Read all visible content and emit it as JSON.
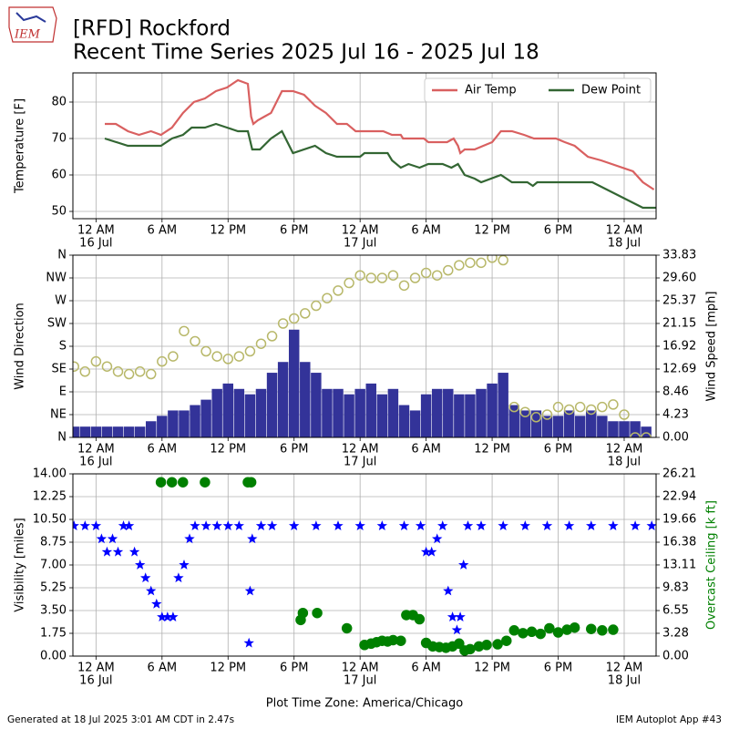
{
  "header": {
    "logo": "IEM",
    "title": "[RFD] Rockford",
    "subtitle": "Recent Time Series 2025 Jul 16 - 2025 Jul 18"
  },
  "footer": {
    "left": "Generated at 18 Jul 2025 3:01 AM CDT in 2.47s",
    "right": "IEM Autoplot App #43"
  },
  "chart_data": [
    {
      "type": "line",
      "ylabel": "Temperature [F]",
      "grid": true,
      "legend": "upper right",
      "xlim": [
        -2.1,
        50.9
      ],
      "xticks": [
        {
          "value": 0,
          "label": [
            "12 AM",
            "16 Jul"
          ]
        },
        {
          "value": 6,
          "label": [
            "6 AM"
          ]
        },
        {
          "value": 12,
          "label": [
            "12 PM"
          ]
        },
        {
          "value": 18,
          "label": [
            "6 PM"
          ]
        },
        {
          "value": 24,
          "label": [
            "12 AM",
            "17 Jul"
          ]
        },
        {
          "value": 30,
          "label": [
            "6 AM"
          ]
        },
        {
          "value": 36,
          "label": [
            "12 PM"
          ]
        },
        {
          "value": 42,
          "label": [
            "6 PM"
          ]
        },
        {
          "value": 48,
          "label": [
            "12 AM",
            "18 Jul"
          ]
        }
      ],
      "ylim": [
        48,
        88
      ],
      "yticks": [
        50,
        60,
        70,
        80
      ],
      "series": [
        {
          "name": "Air Temp",
          "type": "line",
          "color": "#d96060",
          "x": [
            0.8,
            1.8,
            2.9,
            3.9,
            5.0,
            5.9,
            6.9,
            7.9,
            8.9,
            9.9,
            10.9,
            11.9,
            12.9,
            13.8,
            14.1,
            14.3,
            14.7,
            15.3,
            15.9,
            16.9,
            17.9,
            18.9,
            19.9,
            20.9,
            21.9,
            22.8,
            23.6,
            26.1,
            26.9,
            27.7,
            27.9,
            29.8,
            30.2,
            31.9,
            32.5,
            32.9,
            33.1,
            33.5,
            34.4,
            35.2,
            36.0,
            36.8,
            37.8,
            38.9,
            39.8,
            41.8,
            42.6,
            43.5,
            44.7,
            45.9,
            48.8,
            49.7,
            50.7
          ],
          "values": [
            74,
            74,
            72,
            71,
            72,
            71,
            73,
            77,
            80,
            81,
            83,
            84,
            86,
            85,
            76,
            74,
            75,
            76,
            77,
            83,
            83,
            82,
            79,
            77,
            74,
            74,
            72,
            72,
            71,
            71,
            70,
            70,
            69,
            69,
            70,
            68,
            66,
            67,
            67,
            68,
            69,
            72,
            72,
            71,
            70,
            70,
            69,
            68,
            65,
            64,
            61,
            58,
            56
          ]
        },
        {
          "name": "Dew Point",
          "type": "line",
          "color": "#336633",
          "x": [
            0.8,
            2.9,
            5.9,
            6.9,
            7.9,
            8.7,
            9.9,
            10.9,
            11.9,
            12.9,
            13.8,
            14.2,
            14.9,
            15.9,
            16.9,
            17.9,
            19.9,
            20.9,
            21.9,
            24.0,
            24.4,
            26.5,
            26.9,
            27.7,
            28.4,
            29.4,
            30.2,
            31.5,
            32.3,
            32.9,
            33.5,
            34.4,
            35.0,
            36.8,
            37.8,
            39.2,
            39.7,
            40.1,
            45.1,
            49.7,
            50.9
          ],
          "values": [
            70,
            68,
            68,
            70,
            71,
            73,
            73,
            74,
            73,
            72,
            72,
            67,
            67,
            70,
            72,
            66,
            68,
            66,
            65,
            65,
            66,
            66,
            64,
            62,
            63,
            62,
            63,
            63,
            62,
            63,
            60,
            59,
            58,
            60,
            58,
            58,
            57,
            58,
            58,
            51,
            51
          ]
        }
      ]
    },
    {
      "type": "combo",
      "ylabel": "Wind Direction",
      "y2label": "Wind Speed [mph]",
      "grid": true,
      "xlim": [
        -2.1,
        50.9
      ],
      "xticks": [
        {
          "value": 0,
          "label": [
            "12 AM",
            "16 Jul"
          ]
        },
        {
          "value": 6,
          "label": [
            "6 AM"
          ]
        },
        {
          "value": 12,
          "label": [
            "12 PM"
          ]
        },
        {
          "value": 18,
          "label": [
            "6 PM"
          ]
        },
        {
          "value": 24,
          "label": [
            "12 AM",
            "17 Jul"
          ]
        },
        {
          "value": 30,
          "label": [
            "6 AM"
          ]
        },
        {
          "value": 36,
          "label": [
            "12 PM"
          ]
        },
        {
          "value": 42,
          "label": [
            "6 PM"
          ]
        },
        {
          "value": 48,
          "label": [
            "12 AM",
            "18 Jul"
          ]
        }
      ],
      "ylim": [
        0,
        360
      ],
      "yticks": [
        {
          "value": 0,
          "label": "N"
        },
        {
          "value": 45,
          "label": "NE"
        },
        {
          "value": 90,
          "label": "E"
        },
        {
          "value": 135,
          "label": "SE"
        },
        {
          "value": 180,
          "label": "S"
        },
        {
          "value": 225,
          "label": "SW"
        },
        {
          "value": 270,
          "label": "W"
        },
        {
          "value": 315,
          "label": "NW"
        },
        {
          "value": 360,
          "label": "N"
        }
      ],
      "y2lim": [
        0,
        33.83
      ],
      "y2ticks": [
        {
          "value": 0,
          "label": "0.00"
        },
        4.23,
        8.46,
        12.69,
        16.92,
        21.15,
        25.37,
        {
          "value": 29.6,
          "label": "29.60"
        },
        33.83
      ],
      "series": [
        {
          "type": "bar",
          "axis": "y2",
          "color": "#333399",
          "x": [
            -2,
            -1,
            0,
            1,
            2,
            3,
            4,
            5,
            6,
            7,
            8,
            9,
            10,
            11,
            12,
            13,
            14,
            15,
            16,
            17,
            18,
            19,
            20,
            21,
            22,
            23,
            24,
            25,
            26,
            27,
            28,
            29,
            30,
            31,
            32,
            33,
            34,
            35,
            36,
            37,
            38,
            39,
            40,
            41,
            42,
            43,
            44,
            45,
            46,
            47,
            48,
            49,
            50
          ],
          "values": [
            2,
            2,
            2,
            2,
            2,
            2,
            2,
            3,
            4,
            5,
            5,
            6,
            7,
            9,
            10,
            9,
            8,
            9,
            12,
            14,
            20,
            14,
            12,
            9,
            9,
            8,
            9,
            10,
            8,
            9,
            6,
            5,
            8,
            9,
            9,
            8,
            8,
            9,
            10,
            12,
            6,
            5,
            5,
            4,
            4,
            5,
            4,
            5,
            4,
            3,
            3,
            3,
            2
          ]
        },
        {
          "type": "scatter",
          "marker": "o",
          "filled": false,
          "color": "#b8b86a",
          "x": [
            -2,
            -1,
            0,
            1,
            2,
            3,
            4,
            5,
            6,
            7,
            8,
            9,
            10,
            11,
            12,
            13,
            14,
            15,
            16,
            17,
            18,
            19,
            20,
            21,
            22,
            23,
            24,
            25,
            26,
            27,
            28,
            29,
            30,
            31,
            32,
            33,
            34,
            35,
            36,
            37,
            38,
            39,
            40,
            41,
            42,
            43,
            44,
            45,
            46,
            47,
            48,
            49,
            50
          ],
          "values": [
            140,
            130,
            150,
            140,
            130,
            125,
            130,
            125,
            150,
            160,
            210,
            190,
            170,
            160,
            155,
            160,
            170,
            185,
            200,
            225,
            235,
            245,
            260,
            275,
            290,
            305,
            320,
            315,
            315,
            320,
            300,
            315,
            325,
            320,
            330,
            340,
            345,
            345,
            355,
            350,
            60,
            50,
            40,
            45,
            60,
            55,
            60,
            55,
            60,
            65,
            45,
            0,
            0
          ]
        }
      ]
    },
    {
      "type": "combo",
      "ylabel": "Visibility [miles]",
      "y2label": "Overcast Ceiling [k ft]",
      "y2label_color": "#008000",
      "xlabel": "Plot Time Zone: America/Chicago",
      "grid": true,
      "xlim": [
        -2.1,
        50.9
      ],
      "xticks": [
        {
          "value": 0,
          "label": [
            "12 AM",
            "16 Jul"
          ]
        },
        {
          "value": 6,
          "label": [
            "6 AM"
          ]
        },
        {
          "value": 12,
          "label": [
            "12 PM"
          ]
        },
        {
          "value": 18,
          "label": [
            "6 PM"
          ]
        },
        {
          "value": 24,
          "label": [
            "12 AM",
            "17 Jul"
          ]
        },
        {
          "value": 30,
          "label": [
            "6 AM"
          ]
        },
        {
          "value": 36,
          "label": [
            "12 PM"
          ]
        },
        {
          "value": 42,
          "label": [
            "6 PM"
          ]
        },
        {
          "value": 48,
          "label": [
            "12 AM",
            "18 Jul"
          ]
        }
      ],
      "ylim": [
        0,
        14
      ],
      "yticks": [
        {
          "value": 0,
          "label": "0.00"
        },
        1.75,
        {
          "value": 3.5,
          "label": "3.50"
        },
        5.25,
        {
          "value": 7,
          "label": "7.00"
        },
        8.75,
        {
          "value": 10.5,
          "label": "10.50"
        },
        12.25,
        {
          "value": 14,
          "label": "14.00"
        }
      ],
      "y2lim": [
        0,
        26.21
      ],
      "y2ticks": [
        {
          "value": 0,
          "label": "0.00"
        },
        3.28,
        6.55,
        9.83,
        13.11,
        16.38,
        19.66,
        22.94,
        26.21
      ],
      "series": [
        {
          "type": "scatter",
          "marker": "*",
          "filled": true,
          "color": "#0000ff",
          "x": [
            -2,
            -1,
            0,
            0.5,
            1,
            1.5,
            2,
            2.5,
            3,
            3.5,
            4,
            4.5,
            5,
            5.5,
            6,
            6.5,
            7,
            7.5,
            8,
            8.5,
            9,
            10,
            11,
            12,
            13,
            13.9,
            14,
            14.2,
            15,
            16,
            18,
            20,
            22,
            24,
            26,
            28,
            29.5,
            30,
            30.5,
            31,
            31.5,
            32,
            32.4,
            32.8,
            33.1,
            33.4,
            33.8,
            35,
            37,
            39,
            41,
            43,
            45,
            47,
            49,
            50.5
          ],
          "values": [
            10,
            10,
            10,
            9,
            8,
            9,
            8,
            10,
            10,
            8,
            7,
            6,
            5,
            4,
            3,
            3,
            3,
            6,
            7,
            9,
            10,
            10,
            10,
            10,
            10,
            1,
            5,
            9,
            10,
            10,
            10,
            10,
            10,
            10,
            10,
            10,
            10,
            8,
            8,
            9,
            10,
            5,
            3,
            2,
            3,
            7,
            10,
            10,
            10,
            10,
            10,
            10,
            10,
            10,
            10,
            10
          ]
        },
        {
          "type": "scatter",
          "marker": "o",
          "filled": true,
          "axis": "y2",
          "color": "#008000",
          "x": [
            5.9,
            6.9,
            7.9,
            9.9,
            13.8,
            14.1,
            18.6,
            18.8,
            20.1,
            22.8,
            24.4,
            25,
            25.5,
            26,
            26.5,
            27,
            27.7,
            28.2,
            28.8,
            29.4,
            30,
            30.6,
            31.2,
            31.8,
            32.4,
            33,
            33.5,
            34,
            34.8,
            35.5,
            36.5,
            37.3,
            38,
            38.8,
            39.6,
            40.4,
            41.2,
            42,
            42.8,
            43.5,
            45,
            46,
            47
          ],
          "values": [
            25,
            25,
            25,
            25,
            25,
            25,
            5.2,
            6.2,
            6.2,
            4.0,
            1.6,
            1.8,
            2.0,
            2.2,
            2.1,
            2.3,
            2.2,
            5.9,
            5.9,
            5.3,
            1.9,
            1.4,
            1.3,
            1.2,
            1.4,
            1.8,
            0.8,
            1.0,
            1.4,
            1.6,
            1.7,
            2.2,
            3.7,
            3.3,
            3.5,
            3.2,
            4.0,
            3.4,
            3.8,
            4.1,
            3.9,
            3.7,
            3.8
          ]
        }
      ]
    }
  ]
}
